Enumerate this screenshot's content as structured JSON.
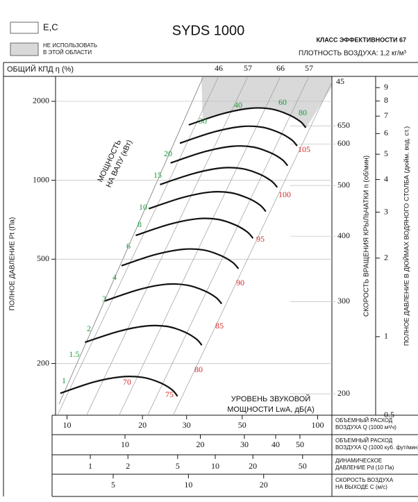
{
  "chart_data": {
    "type": "line",
    "title": "SYDS 1000",
    "legend": {
      "items": [
        "E,C",
        [
          "НЕ ИСПОЛЬЗОВАТЬ",
          "В ЭТОЙ ОБЛАСТИ"
        ]
      ],
      "colors": [
        "#ffffff",
        "#d9d9d9"
      ]
    },
    "class_text": "КЛАСС ЭФФЕКТИВНОСТИ 67",
    "density_text": "ПЛОТНОСТЬ ВОЗДУХА: 1,2 кг/м³",
    "efficiency": {
      "label": "ОБЩИЙ КПД η (%)",
      "values": [
        46,
        57,
        66,
        57,
        45
      ],
      "color": "#9a9a9a"
    },
    "ylabel": "ПОЛНОЕ ДАВЛЕНИЕ Pt (Па)",
    "ylim": [
      127,
      2490
    ],
    "yticks": [
      200,
      500,
      1000,
      2000
    ],
    "log_y": true,
    "grid": true,
    "xlabel": [
      "ОБЪЕМНЫЙ РАСХОД",
      "ВОЗДУХА Q (1000 м³/ч)"
    ],
    "xlim": [
      9,
      114
    ],
    "xticks": [
      10,
      20,
      30,
      50,
      100
    ],
    "log_x": true,
    "rpm_axis": {
      "label": "СКОРОСТЬ ВРАЩЕНИЯ КРЫЛЬЧАТКИ  n (об/мин)",
      "lim": [
        182,
        808
      ],
      "ticks": [
        200,
        300,
        400,
        500,
        600,
        650
      ]
    },
    "inch_axis": {
      "label": "ПОЛНОЕ ДАВЛЕНИЕ В ДЮЙМАХ ВОДЯНОГО СТОЛБА (дюйм. вод. ст.)",
      "lim": [
        0.5,
        9.94
      ],
      "ticks": [
        0.5,
        1,
        2,
        3,
        4,
        5,
        6,
        7,
        8,
        9
      ]
    },
    "bottom_scales": [
      {
        "label": [
          "ОБЪЕМНЫЙ РАСХОД",
          "ВОЗДУХА Q (1000 куб. фут/мин)"
        ],
        "lim": [
          5.28,
          67.1
        ],
        "ticks": [
          10,
          20,
          30,
          40,
          50
        ]
      },
      {
        "label": [
          "ДИНАМИЧЕСКОЕ",
          "ДАВЛЕНИЕ Pd (10 Па)"
        ],
        "lim": [
          0.527,
          85.8
        ],
        "ticks": [
          1,
          2,
          5,
          10,
          20,
          50
        ]
      },
      {
        "label": [
          "СКОРОСТЬ ВОЗДУХА",
          "НА ВЫХОДЕ C (м/с)"
        ],
        "lim": [
          2.94,
          37.5
        ],
        "ticks": [
          5,
          10,
          20
        ]
      }
    ],
    "power_label": {
      "lines": [
        "МОЩНОСТЬ",
        "НА ВАЛУ (кВт)"
      ],
      "color": "#1a9a3a",
      "values": [
        1,
        1.5,
        2,
        3,
        4,
        6,
        8,
        10,
        15,
        20,
        30,
        40,
        60,
        80
      ]
    },
    "noise_label": {
      "lines": [
        "УРОВЕНЬ ЗВУКОВОЙ",
        "МОЩНОСТИ LwA, дБ(A)"
      ],
      "color": "#d42a2a",
      "values": [
        70,
        75,
        80,
        85,
        90,
        95,
        100,
        105
      ]
    },
    "series": [
      {
        "color": "#111111",
        "x": [
          30.6,
          41.6,
          53.8,
          65.2,
          76.4,
          85.2,
          89.7
        ],
        "values": [
          1626,
          1792,
          1881,
          1870,
          1781,
          1676,
          1587
        ]
      },
      {
        "color": "#111111",
        "x": [
          28.2,
          38.4,
          49.7,
          60.2,
          70.5,
          78.6,
          82.8
        ],
        "values": [
          1385,
          1527,
          1603,
          1593,
          1517,
          1428,
          1352
        ]
      },
      {
        "color": "#111111",
        "x": [
          25.9,
          35.2,
          45.5,
          55.2,
          64.6,
          72.1,
          75.9
        ],
        "values": [
          1164,
          1283,
          1347,
          1339,
          1275,
          1200,
          1136
        ]
      },
      {
        "color": "#111111",
        "x": [
          23.5,
          32.0,
          41.4,
          50.1,
          58.8,
          65.5,
          69.0
        ],
        "values": [
          963,
          1061,
          1114,
          1107,
          1054,
          992,
          940
        ]
      },
      {
        "color": "#111111",
        "x": [
          21.2,
          28.8,
          37.2,
          45.1,
          52.9,
          59.0,
          62.1
        ],
        "values": [
          779,
          858,
          901,
          896,
          853,
          803,
          760
        ]
      },
      {
        "color": "#111111",
        "x": [
          18.8,
          25.6,
          33.1,
          40.1,
          47.0,
          52.4,
          55.2
        ],
        "values": [
          616,
          679,
          713,
          709,
          675,
          635,
          601
        ]
      },
      {
        "color": "#111111",
        "x": [
          16.5,
          22.4,
          28.9,
          35.1,
          41.1,
          45.8,
          48.3
        ],
        "values": [
          472,
          520,
          545,
          542,
          516,
          486,
          460
        ]
      },
      {
        "color": "#111111",
        "x": [
          14.1,
          19.2,
          24.8,
          30.1,
          35.3,
          39.3,
          41.4
        ],
        "values": [
          346,
          382,
          401,
          398,
          379,
          357,
          338
        ]
      },
      {
        "color": "#111111",
        "x": [
          11.8,
          16.0,
          20.7,
          25.1,
          29.4,
          32.8,
          34.5
        ],
        "values": [
          241,
          265,
          278,
          277,
          264,
          248,
          235
        ]
      },
      {
        "color": "#111111",
        "x": [
          9.4,
          12.8,
          16.6,
          20.1,
          23.5,
          26.2,
          27.6
        ],
        "values": [
          154,
          170,
          178,
          177,
          169,
          159,
          150
        ]
      }
    ]
  }
}
